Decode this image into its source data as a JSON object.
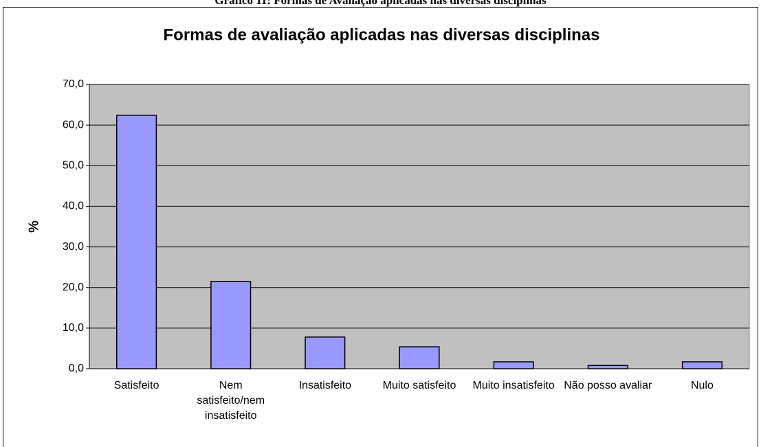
{
  "caption": "Gráfico 11: Formas de Avaliação aplicadas nas diversas disciplinas",
  "chart_data": {
    "type": "bar",
    "title": "Formas de avaliação aplicadas nas diversas disciplinas",
    "y_label": "%",
    "categories": [
      "Satisfeito",
      "Nem satisfeito/nem insatisfeito",
      "Insatisfeito",
      "Muito satisfeito",
      "Muito insatisfeito",
      "Não posso avaliar",
      "Nulo"
    ],
    "values": [
      62.4,
      21.5,
      7.8,
      5.4,
      1.7,
      0.8,
      1.7
    ],
    "color": "#9999ff",
    "ylim": [
      0,
      70
    ],
    "yticks": [
      {
        "value": 0,
        "label": "0,0"
      },
      {
        "value": 10,
        "label": "10,0"
      },
      {
        "value": 20,
        "label": "20,0"
      },
      {
        "value": 30,
        "label": "30,0"
      },
      {
        "value": 40,
        "label": "40,0"
      },
      {
        "value": 50,
        "label": "50,0"
      },
      {
        "value": 60,
        "label": "60,0"
      },
      {
        "value": 70,
        "label": "70,0"
      }
    ],
    "grid": true
  }
}
